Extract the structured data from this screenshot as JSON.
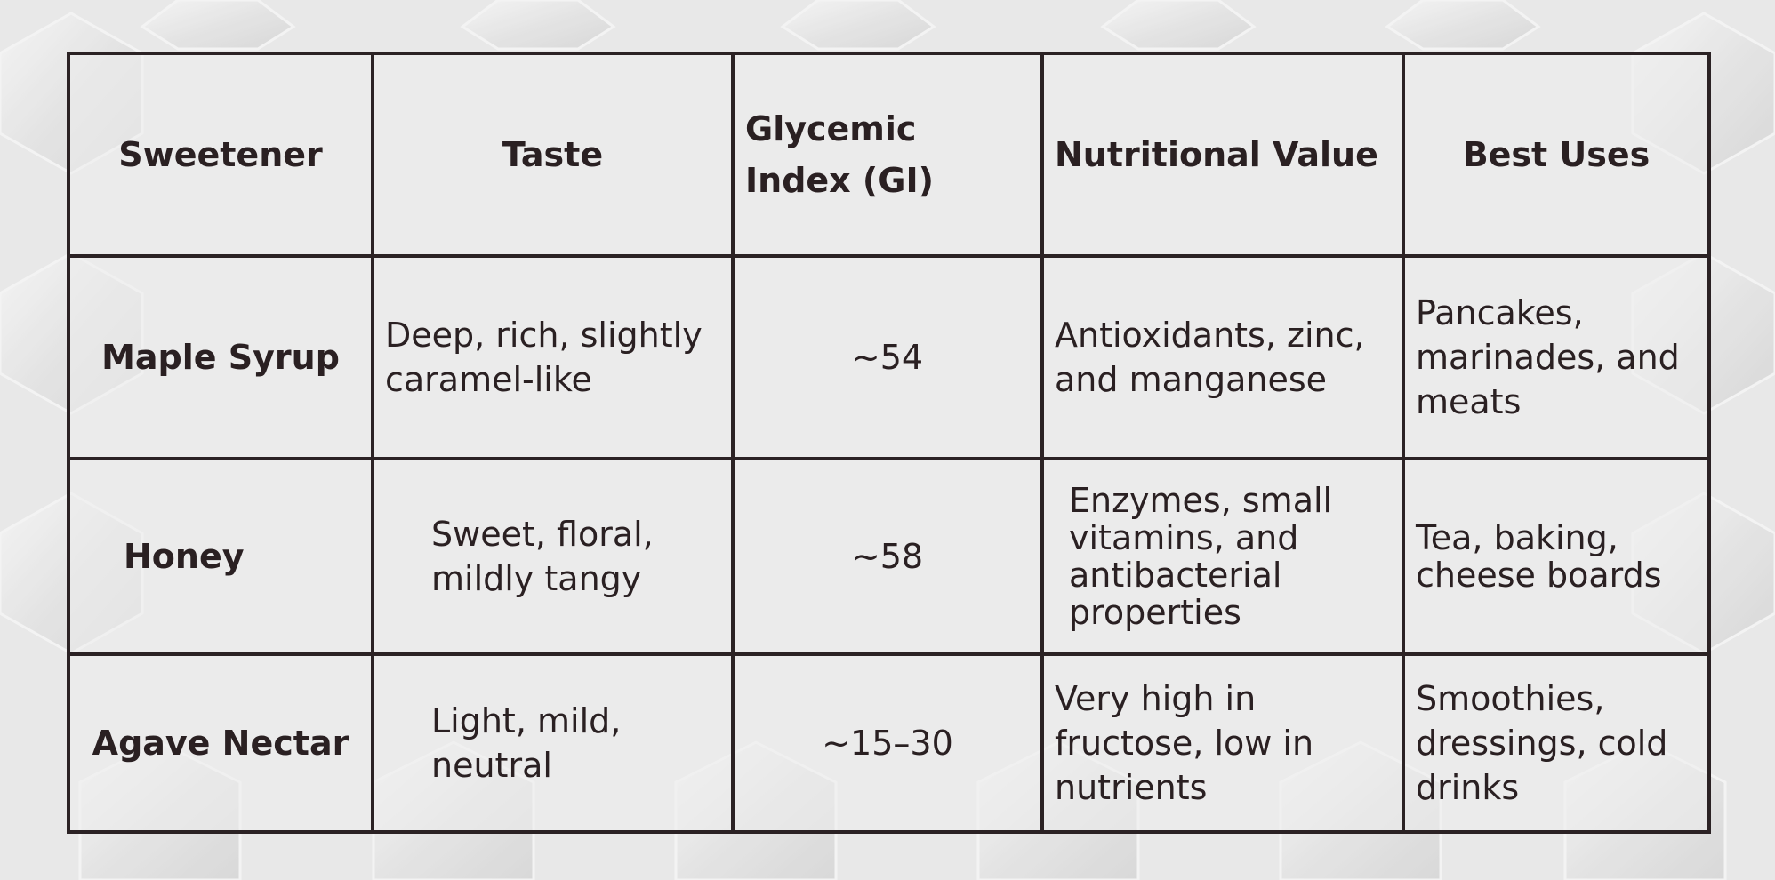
{
  "table": {
    "headers": {
      "sweetener": "Sweetener",
      "taste": "Taste",
      "gi": "Glycemic Index (GI)",
      "nutrition": "Nutritional Value",
      "uses": "Best Uses"
    },
    "rows": [
      {
        "sweetener": "Maple Syrup",
        "taste": "Deep, rich, slightly caramel-like",
        "gi": "~54",
        "nutrition": "Antioxidants, zinc, and manganese",
        "uses": "Pancakes, marinades, and meats"
      },
      {
        "sweetener": "Honey",
        "taste": "Sweet, floral, mildly tangy",
        "gi": "~58",
        "nutrition": "Enzymes, small vitamins, and antibacterial properties",
        "uses": "Tea, baking, cheese boards"
      },
      {
        "sweetener": "Agave Nectar",
        "taste": "Light, mild, neutral",
        "gi": "~15–30",
        "nutrition": "Very high in fructose, low in nutrients",
        "uses": "Smoothies, dressings, cold drinks"
      }
    ]
  },
  "colors": {
    "background": "#e9e9e9",
    "border": "#2b2224",
    "text": "#2a2022"
  }
}
